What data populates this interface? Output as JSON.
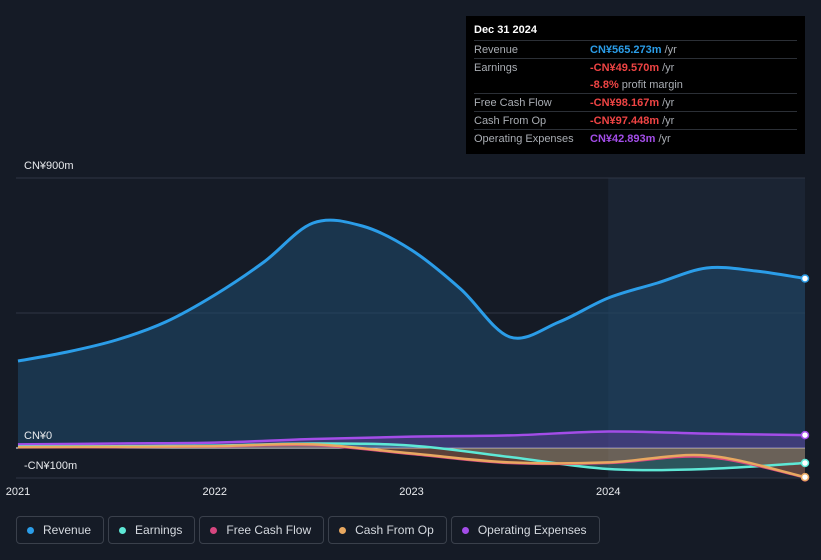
{
  "tooltip": {
    "date": "Dec 31 2024",
    "rows": [
      {
        "label": "Revenue",
        "value": "CN¥565.273m",
        "unit": "/yr",
        "color": "#2b9de8"
      },
      {
        "label": "Earnings",
        "value": "-CN¥49.570m",
        "unit": "/yr",
        "color": "#ef4444"
      },
      {
        "label": "",
        "value": "-8.8%",
        "unit": "profit margin",
        "color": "#ef4444"
      },
      {
        "label": "Free Cash Flow",
        "value": "-CN¥98.167m",
        "unit": "/yr",
        "color": "#ef4444"
      },
      {
        "label": "Cash From Op",
        "value": "-CN¥97.448m",
        "unit": "/yr",
        "color": "#ef4444"
      },
      {
        "label": "Operating Expenses",
        "value": "CN¥42.893m",
        "unit": "/yr",
        "color": "#a34de8"
      }
    ]
  },
  "axis": {
    "y_top": "CN¥900m",
    "y_zero": "CN¥0",
    "y_bottom": "-CN¥100m"
  },
  "legend": [
    {
      "label": "Revenue",
      "color": "#2b9de8"
    },
    {
      "label": "Earnings",
      "color": "#5ee8d6"
    },
    {
      "label": "Free Cash Flow",
      "color": "#d6467f"
    },
    {
      "label": "Cash From Op",
      "color": "#e8a860"
    },
    {
      "label": "Operating Expenses",
      "color": "#a34de8"
    }
  ],
  "chart_data": {
    "type": "area",
    "x_ticks": [
      "2021",
      "2022",
      "2023",
      "2024"
    ],
    "x_tick_values": [
      2021.0,
      2022.0,
      2023.0,
      2024.0
    ],
    "xlim": [
      2020.99,
      2025.0
    ],
    "ylim": [
      -100,
      900
    ],
    "y_ticks": [
      -100,
      0,
      900
    ],
    "grid": true,
    "highlight_from": 2024.0,
    "series": [
      {
        "name": "Revenue",
        "color": "#2b9de8",
        "x": [
          2021.0,
          2021.25,
          2021.5,
          2021.75,
          2022.0,
          2022.25,
          2022.5,
          2022.75,
          2023.0,
          2023.25,
          2023.5,
          2023.75,
          2024.0,
          2024.25,
          2024.5,
          2024.75,
          2025.0
        ],
        "y": [
          290,
          320,
          360,
          420,
          510,
          620,
          750,
          740,
          660,
          530,
          370,
          420,
          500,
          550,
          600,
          590,
          565
        ]
      },
      {
        "name": "Operating Expenses",
        "color": "#a34de8",
        "x": [
          2021.0,
          2021.5,
          2022.0,
          2022.5,
          2023.0,
          2023.5,
          2024.0,
          2024.5,
          2025.0
        ],
        "y": [
          12,
          15,
          18,
          30,
          38,
          42,
          55,
          48,
          43
        ]
      },
      {
        "name": "Earnings",
        "color": "#5ee8d6",
        "x": [
          2021.0,
          2021.5,
          2022.0,
          2022.5,
          2023.0,
          2023.5,
          2024.0,
          2024.5,
          2025.0
        ],
        "y": [
          5,
          6,
          8,
          15,
          8,
          -30,
          -70,
          -70,
          -50
        ]
      },
      {
        "name": "Free Cash Flow",
        "color": "#d6467f",
        "x": [
          2021.0,
          2021.5,
          2022.0,
          2022.5,
          2023.0,
          2023.5,
          2024.0,
          2024.5,
          2025.0
        ],
        "y": [
          2,
          3,
          5,
          10,
          -20,
          -50,
          -50,
          -30,
          -98
        ]
      },
      {
        "name": "Cash From Op",
        "color": "#e8a860",
        "x": [
          2021.0,
          2021.5,
          2022.0,
          2022.5,
          2023.0,
          2023.5,
          2024.0,
          2024.5,
          2025.0
        ],
        "y": [
          3,
          4,
          6,
          12,
          -18,
          -48,
          -48,
          -25,
          -97
        ]
      }
    ]
  }
}
